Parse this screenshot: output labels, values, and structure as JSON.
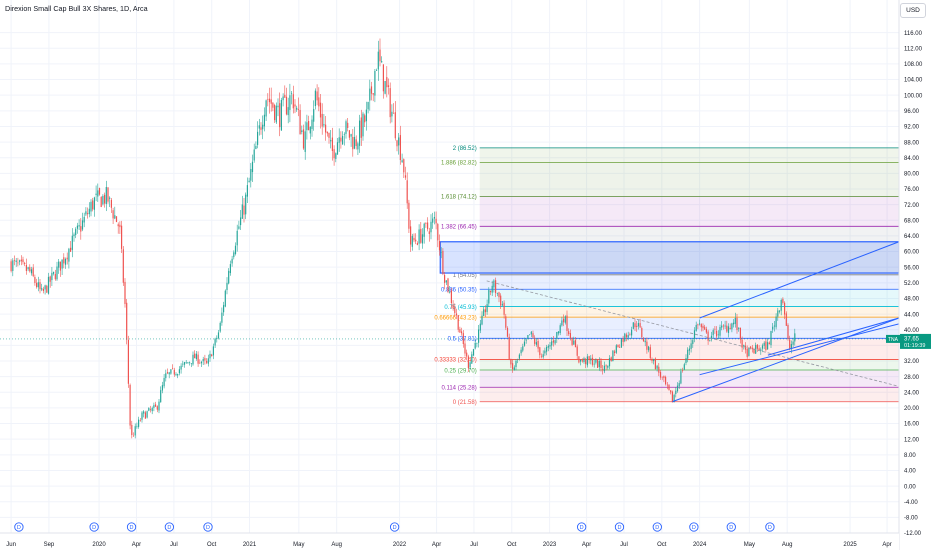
{
  "header": {
    "title": "Direxion Small Cap Bull 3X Shares, 1D, Arca",
    "currency": "USD"
  },
  "price_tag": {
    "symbol": "TNA",
    "price": "37.65",
    "countdown": "01:19:39"
  },
  "colors": {
    "up": "#26a69a",
    "down": "#ef5350",
    "drawing": "#2962ff",
    "accent_tag": "#089981"
  },
  "event_marker_label": "D",
  "chart_data": {
    "type": "candlestick",
    "title": "",
    "ylim": [
      -12,
      120
    ],
    "y_ticks": [
      116,
      112,
      108,
      104,
      100,
      96,
      92,
      88,
      84,
      80,
      76,
      72,
      68,
      64,
      60,
      56,
      52,
      48,
      44,
      40,
      36,
      32,
      28,
      24,
      20,
      16,
      12,
      8,
      4,
      0,
      -4,
      -8,
      -12
    ],
    "x_ticks": [
      {
        "label": "Jun",
        "date": "2019-06"
      },
      {
        "label": "Sep",
        "date": "2019-09"
      },
      {
        "label": "2020",
        "date": "2020-01"
      },
      {
        "label": "Apr",
        "date": "2020-04"
      },
      {
        "label": "Jul",
        "date": "2020-07"
      },
      {
        "label": "Oct",
        "date": "2020-10"
      },
      {
        "label": "2021",
        "date": "2021-01"
      },
      {
        "label": "May",
        "date": "2021-05"
      },
      {
        "label": "Aug",
        "date": "2021-08"
      },
      {
        "label": "2022",
        "date": "2022-01"
      },
      {
        "label": "Apr",
        "date": "2022-04"
      },
      {
        "label": "Jul",
        "date": "2022-07"
      },
      {
        "label": "Oct",
        "date": "2022-10"
      },
      {
        "label": "2023",
        "date": "2023-01"
      },
      {
        "label": "Apr",
        "date": "2023-04"
      },
      {
        "label": "Jul",
        "date": "2023-07"
      },
      {
        "label": "Oct",
        "date": "2023-10"
      },
      {
        "label": "2024",
        "date": "2024-01"
      },
      {
        "label": "May",
        "date": "2024-05"
      },
      {
        "label": "Aug",
        "date": "2024-08"
      },
      {
        "label": "2025",
        "date": "2025-01"
      },
      {
        "label": "Apr",
        "date": "2025-04"
      }
    ],
    "price_path": [
      [
        "2019-06-01",
        57
      ],
      [
        "2019-07-15",
        55
      ],
      [
        "2019-08-15",
        49
      ],
      [
        "2019-10-01",
        57
      ],
      [
        "2019-11-15",
        66
      ],
      [
        "2019-12-20",
        73
      ],
      [
        "2020-01-20",
        74
      ],
      [
        "2020-02-20",
        66
      ],
      [
        "2020-03-05",
        45
      ],
      [
        "2020-03-18",
        12
      ],
      [
        "2020-04-15",
        18
      ],
      [
        "2020-05-20",
        20
      ],
      [
        "2020-06-10",
        28
      ],
      [
        "2020-07-15",
        30
      ],
      [
        "2020-08-20",
        33
      ],
      [
        "2020-09-20",
        31
      ],
      [
        "2020-10-20",
        40
      ],
      [
        "2020-11-15",
        58
      ],
      [
        "2020-12-20",
        72
      ],
      [
        "2021-01-20",
        88
      ],
      [
        "2021-02-10",
        100
      ],
      [
        "2021-03-15",
        95
      ],
      [
        "2021-04-15",
        100
      ],
      [
        "2021-05-15",
        88
      ],
      [
        "2021-06-10",
        100
      ],
      [
        "2021-07-20",
        85
      ],
      [
        "2021-08-15",
        92
      ],
      [
        "2021-09-15",
        88
      ],
      [
        "2021-10-15",
        95
      ],
      [
        "2021-11-08",
        110
      ],
      [
        "2021-12-15",
        95
      ],
      [
        "2022-01-10",
        83
      ],
      [
        "2022-01-28",
        62
      ],
      [
        "2022-02-20",
        64
      ],
      [
        "2022-03-29",
        68
      ],
      [
        "2022-04-20",
        54
      ],
      [
        "2022-05-20",
        43
      ],
      [
        "2022-06-17",
        31
      ],
      [
        "2022-07-15",
        40
      ],
      [
        "2022-08-15",
        52
      ],
      [
        "2022-09-10",
        46
      ],
      [
        "2022-09-30",
        29
      ],
      [
        "2022-11-15",
        39
      ],
      [
        "2022-12-15",
        33
      ],
      [
        "2023-01-25",
        40
      ],
      [
        "2023-02-02",
        44
      ],
      [
        "2023-03-15",
        32
      ],
      [
        "2023-04-15",
        32
      ],
      [
        "2023-05-15",
        30
      ],
      [
        "2023-06-15",
        36
      ],
      [
        "2023-07-31",
        42
      ],
      [
        "2023-09-01",
        34
      ],
      [
        "2023-10-27",
        22
      ],
      [
        "2023-12-27",
        42
      ],
      [
        "2024-01-20",
        38
      ],
      [
        "2024-03-28",
        42
      ],
      [
        "2024-04-20",
        34
      ],
      [
        "2024-06-15",
        36
      ],
      [
        "2024-07-20",
        49
      ],
      [
        "2024-08-05",
        35
      ],
      [
        "2024-08-20",
        38
      ]
    ],
    "last_price": 37.65,
    "fibonacci": {
      "start_date": "2022-07-15",
      "end_date": "2025-04-30",
      "levels": [
        {
          "ratio": "2",
          "price": 86.52,
          "label": "2 (86.52)",
          "color": "#00897b"
        },
        {
          "ratio": "1.886",
          "price": 82.82,
          "label": "1.886 (82.82)",
          "color": "#689f38"
        },
        {
          "ratio": "1.618",
          "price": 74.12,
          "label": "1.618 (74.12)",
          "color": "#558b2f"
        },
        {
          "ratio": "1.382",
          "price": 66.45,
          "label": "1.382 (66.45)",
          "color": "#9c27b0"
        },
        {
          "ratio": "1",
          "price": 54.05,
          "label": "1 (54.05)",
          "color": "#787b86"
        },
        {
          "ratio": "0.886",
          "price": 50.35,
          "label": "0.886 (50.35)",
          "color": "#2962ff"
        },
        {
          "ratio": "0.75",
          "price": 45.93,
          "label": "0.75 (45.93)",
          "color": "#00bcd4"
        },
        {
          "ratio": "0.66666",
          "price": 43.23,
          "label": "0.66666 (43.23)",
          "color": "#ff9800"
        },
        {
          "ratio": "0.5",
          "price": 37.81,
          "label": "0.5 (37.81)",
          "color": "#2962ff"
        },
        {
          "ratio": "0.33333",
          "price": 32.4,
          "label": "0.33333 (32.40)",
          "color": "#f44336"
        },
        {
          "ratio": "0.25",
          "price": 29.7,
          "label": "0.25 (29.70)",
          "color": "#4caf50"
        },
        {
          "ratio": "0.114",
          "price": 25.28,
          "label": "0.114 (25.28)",
          "color": "#9c27b0"
        },
        {
          "ratio": "0",
          "price": 21.58,
          "label": "0 (21.58)",
          "color": "#ef5350"
        }
      ]
    },
    "target_zone": {
      "start_date": "2022-04-10",
      "end_date": "2025-04-30",
      "top": 62.5,
      "bottom": 54.5
    },
    "trend_lines": [
      {
        "from": [
          "2023-10-27",
          21.6
        ],
        "to": [
          "2025-04-30",
          43.0
        ],
        "color": "#2962ff"
      },
      {
        "from": [
          "2024-01-01",
          28.5
        ],
        "to": [
          "2025-04-30",
          41.5
        ],
        "color": "#2962ff"
      },
      {
        "from": [
          "2024-01-01",
          43.0
        ],
        "to": [
          "2025-04-30",
          62.5
        ],
        "color": "#2962ff"
      },
      {
        "from": [
          "2024-06-15",
          33.5
        ],
        "to": [
          "2025-04-30",
          43.0
        ],
        "color": "#2962ff"
      }
    ],
    "dashed_lines": [
      {
        "from": [
          "2022-08-01",
          52.5
        ],
        "to": [
          "2025-04-30",
          25.5
        ],
        "color": "#9598a1"
      }
    ],
    "event_markers": [
      "2019-06-20",
      "2019-12-20",
      "2020-03-20",
      "2020-06-20",
      "2020-09-22",
      "2021-12-20",
      "2023-03-20",
      "2023-06-20",
      "2023-09-20",
      "2023-12-18",
      "2024-03-18",
      "2024-06-20"
    ],
    "grid": true,
    "legend": "none"
  }
}
